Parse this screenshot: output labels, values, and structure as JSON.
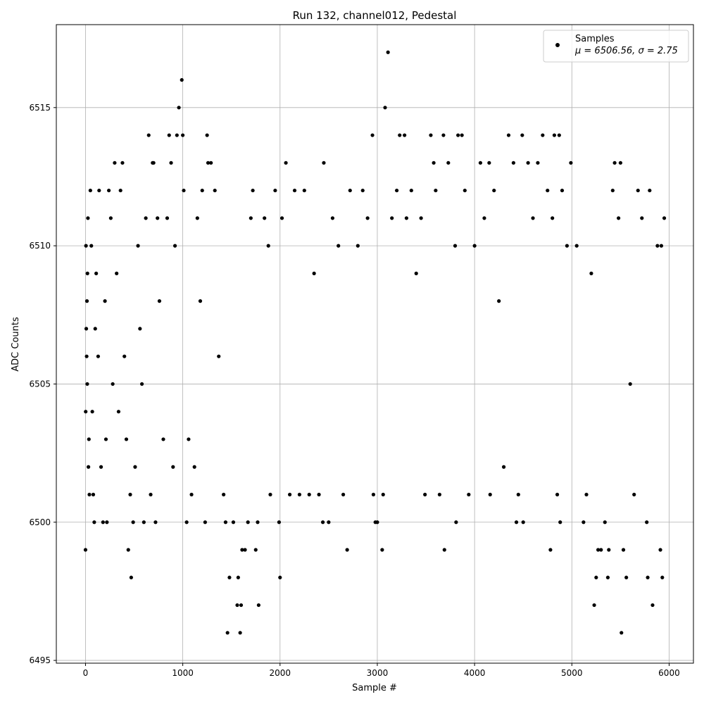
{
  "chart_data": {
    "type": "scatter",
    "title": "Run 132, channel012, Pedestal",
    "xlabel": "Sample #",
    "ylabel": "ADC Counts",
    "xlim": [
      -300,
      6250
    ],
    "ylim": [
      6494.9,
      6518.0
    ],
    "xticks": [
      0,
      1000,
      2000,
      3000,
      4000,
      5000,
      6000
    ],
    "yticks": [
      6495,
      6500,
      6505,
      6510,
      6515
    ],
    "grid": true,
    "legend": {
      "position": "top-right",
      "series_label": "Samples",
      "stats_label": "μ = 6506.56, σ = 2.75"
    },
    "series": [
      {
        "name": "Samples",
        "color": "#000000",
        "points": [
          [
            0,
            6499
          ],
          [
            2,
            6504
          ],
          [
            5,
            6510
          ],
          [
            8,
            6507
          ],
          [
            12,
            6506
          ],
          [
            15,
            6508
          ],
          [
            18,
            6505
          ],
          [
            20,
            6509
          ],
          [
            25,
            6511
          ],
          [
            30,
            6502
          ],
          [
            35,
            6503
          ],
          [
            40,
            6501
          ],
          [
            50,
            6512
          ],
          [
            60,
            6510
          ],
          [
            70,
            6504
          ],
          [
            80,
            6501
          ],
          [
            90,
            6500
          ],
          [
            100,
            6507
          ],
          [
            110,
            6509
          ],
          [
            130,
            6506
          ],
          [
            140,
            6512
          ],
          [
            160,
            6502
          ],
          [
            180,
            6500
          ],
          [
            200,
            6508
          ],
          [
            210,
            6503
          ],
          [
            220,
            6500
          ],
          [
            240,
            6512
          ],
          [
            260,
            6511
          ],
          [
            280,
            6505
          ],
          [
            300,
            6513
          ],
          [
            320,
            6509
          ],
          [
            340,
            6504
          ],
          [
            360,
            6512
          ],
          [
            380,
            6513
          ],
          [
            400,
            6506
          ],
          [
            420,
            6503
          ],
          [
            440,
            6499
          ],
          [
            460,
            6501
          ],
          [
            470,
            6498
          ],
          [
            490,
            6500
          ],
          [
            510,
            6502
          ],
          [
            540,
            6510
          ],
          [
            560,
            6507
          ],
          [
            580,
            6505
          ],
          [
            600,
            6500
          ],
          [
            620,
            6511
          ],
          [
            650,
            6514
          ],
          [
            670,
            6501
          ],
          [
            690,
            6513
          ],
          [
            700,
            6513
          ],
          [
            720,
            6500
          ],
          [
            740,
            6511
          ],
          [
            760,
            6508
          ],
          [
            800,
            6503
          ],
          [
            840,
            6511
          ],
          [
            860,
            6514
          ],
          [
            880,
            6513
          ],
          [
            900,
            6502
          ],
          [
            920,
            6510
          ],
          [
            940,
            6514
          ],
          [
            960,
            6515
          ],
          [
            990,
            6516
          ],
          [
            1000,
            6514
          ],
          [
            1010,
            6512
          ],
          [
            1040,
            6500
          ],
          [
            1060,
            6503
          ],
          [
            1090,
            6501
          ],
          [
            1120,
            6502
          ],
          [
            1150,
            6511
          ],
          [
            1180,
            6508
          ],
          [
            1200,
            6512
          ],
          [
            1230,
            6500
          ],
          [
            1250,
            6514
          ],
          [
            1260,
            6513
          ],
          [
            1290,
            6513
          ],
          [
            1330,
            6512
          ],
          [
            1370,
            6506
          ],
          [
            1420,
            6501
          ],
          [
            1440,
            6500
          ],
          [
            1460,
            6496
          ],
          [
            1480,
            6498
          ],
          [
            1520,
            6500
          ],
          [
            1560,
            6497
          ],
          [
            1570,
            6498
          ],
          [
            1590,
            6496
          ],
          [
            1600,
            6497
          ],
          [
            1610,
            6499
          ],
          [
            1640,
            6499
          ],
          [
            1670,
            6500
          ],
          [
            1700,
            6511
          ],
          [
            1720,
            6512
          ],
          [
            1750,
            6499
          ],
          [
            1770,
            6500
          ],
          [
            1780,
            6497
          ],
          [
            1840,
            6511
          ],
          [
            1880,
            6510
          ],
          [
            1900,
            6501
          ],
          [
            1950,
            6512
          ],
          [
            1990,
            6500
          ],
          [
            2000,
            6498
          ],
          [
            2020,
            6511
          ],
          [
            2060,
            6513
          ],
          [
            2100,
            6501
          ],
          [
            2150,
            6512
          ],
          [
            2200,
            6501
          ],
          [
            2250,
            6512
          ],
          [
            2300,
            6501
          ],
          [
            2350,
            6509
          ],
          [
            2400,
            6501
          ],
          [
            2440,
            6500
          ],
          [
            2450,
            6513
          ],
          [
            2500,
            6500
          ],
          [
            2540,
            6511
          ],
          [
            2600,
            6510
          ],
          [
            2650,
            6501
          ],
          [
            2690,
            6499
          ],
          [
            2720,
            6512
          ],
          [
            2800,
            6510
          ],
          [
            2850,
            6512
          ],
          [
            2900,
            6511
          ],
          [
            2950,
            6514
          ],
          [
            2960,
            6501
          ],
          [
            2980,
            6500
          ],
          [
            3000,
            6500
          ],
          [
            3050,
            6499
          ],
          [
            3060,
            6501
          ],
          [
            3080,
            6515
          ],
          [
            3110,
            6517
          ],
          [
            3150,
            6511
          ],
          [
            3200,
            6512
          ],
          [
            3230,
            6514
          ],
          [
            3280,
            6514
          ],
          [
            3300,
            6511
          ],
          [
            3350,
            6512
          ],
          [
            3400,
            6509
          ],
          [
            3450,
            6511
          ],
          [
            3490,
            6501
          ],
          [
            3550,
            6514
          ],
          [
            3580,
            6513
          ],
          [
            3600,
            6512
          ],
          [
            3640,
            6501
          ],
          [
            3680,
            6514
          ],
          [
            3690,
            6499
          ],
          [
            3730,
            6513
          ],
          [
            3800,
            6510
          ],
          [
            3810,
            6500
          ],
          [
            3830,
            6514
          ],
          [
            3870,
            6514
          ],
          [
            3900,
            6512
          ],
          [
            3940,
            6501
          ],
          [
            4000,
            6510
          ],
          [
            4060,
            6513
          ],
          [
            4100,
            6511
          ],
          [
            4150,
            6513
          ],
          [
            4160,
            6501
          ],
          [
            4200,
            6512
          ],
          [
            4250,
            6508
          ],
          [
            4300,
            6502
          ],
          [
            4350,
            6514
          ],
          [
            4400,
            6513
          ],
          [
            4430,
            6500
          ],
          [
            4450,
            6501
          ],
          [
            4490,
            6514
          ],
          [
            4500,
            6500
          ],
          [
            4550,
            6513
          ],
          [
            4600,
            6511
          ],
          [
            4650,
            6513
          ],
          [
            4700,
            6514
          ],
          [
            4750,
            6512
          ],
          [
            4780,
            6499
          ],
          [
            4800,
            6511
          ],
          [
            4820,
            6514
          ],
          [
            4850,
            6501
          ],
          [
            4870,
            6514
          ],
          [
            4880,
            6500
          ],
          [
            4900,
            6512
          ],
          [
            4950,
            6510
          ],
          [
            4990,
            6513
          ],
          [
            5050,
            6510
          ],
          [
            5120,
            6500
          ],
          [
            5150,
            6501
          ],
          [
            5200,
            6509
          ],
          [
            5230,
            6497
          ],
          [
            5250,
            6498
          ],
          [
            5270,
            6499
          ],
          [
            5300,
            6499
          ],
          [
            5340,
            6500
          ],
          [
            5370,
            6498
          ],
          [
            5380,
            6499
          ],
          [
            5420,
            6512
          ],
          [
            5440,
            6513
          ],
          [
            5480,
            6511
          ],
          [
            5500,
            6513
          ],
          [
            5510,
            6496
          ],
          [
            5530,
            6499
          ],
          [
            5560,
            6498
          ],
          [
            5600,
            6505
          ],
          [
            5640,
            6501
          ],
          [
            5680,
            6512
          ],
          [
            5720,
            6511
          ],
          [
            5770,
            6500
          ],
          [
            5780,
            6498
          ],
          [
            5800,
            6512
          ],
          [
            5830,
            6497
          ],
          [
            5880,
            6510
          ],
          [
            5910,
            6499
          ],
          [
            5920,
            6510
          ],
          [
            5930,
            6498
          ],
          [
            5950,
            6511
          ]
        ]
      }
    ]
  }
}
